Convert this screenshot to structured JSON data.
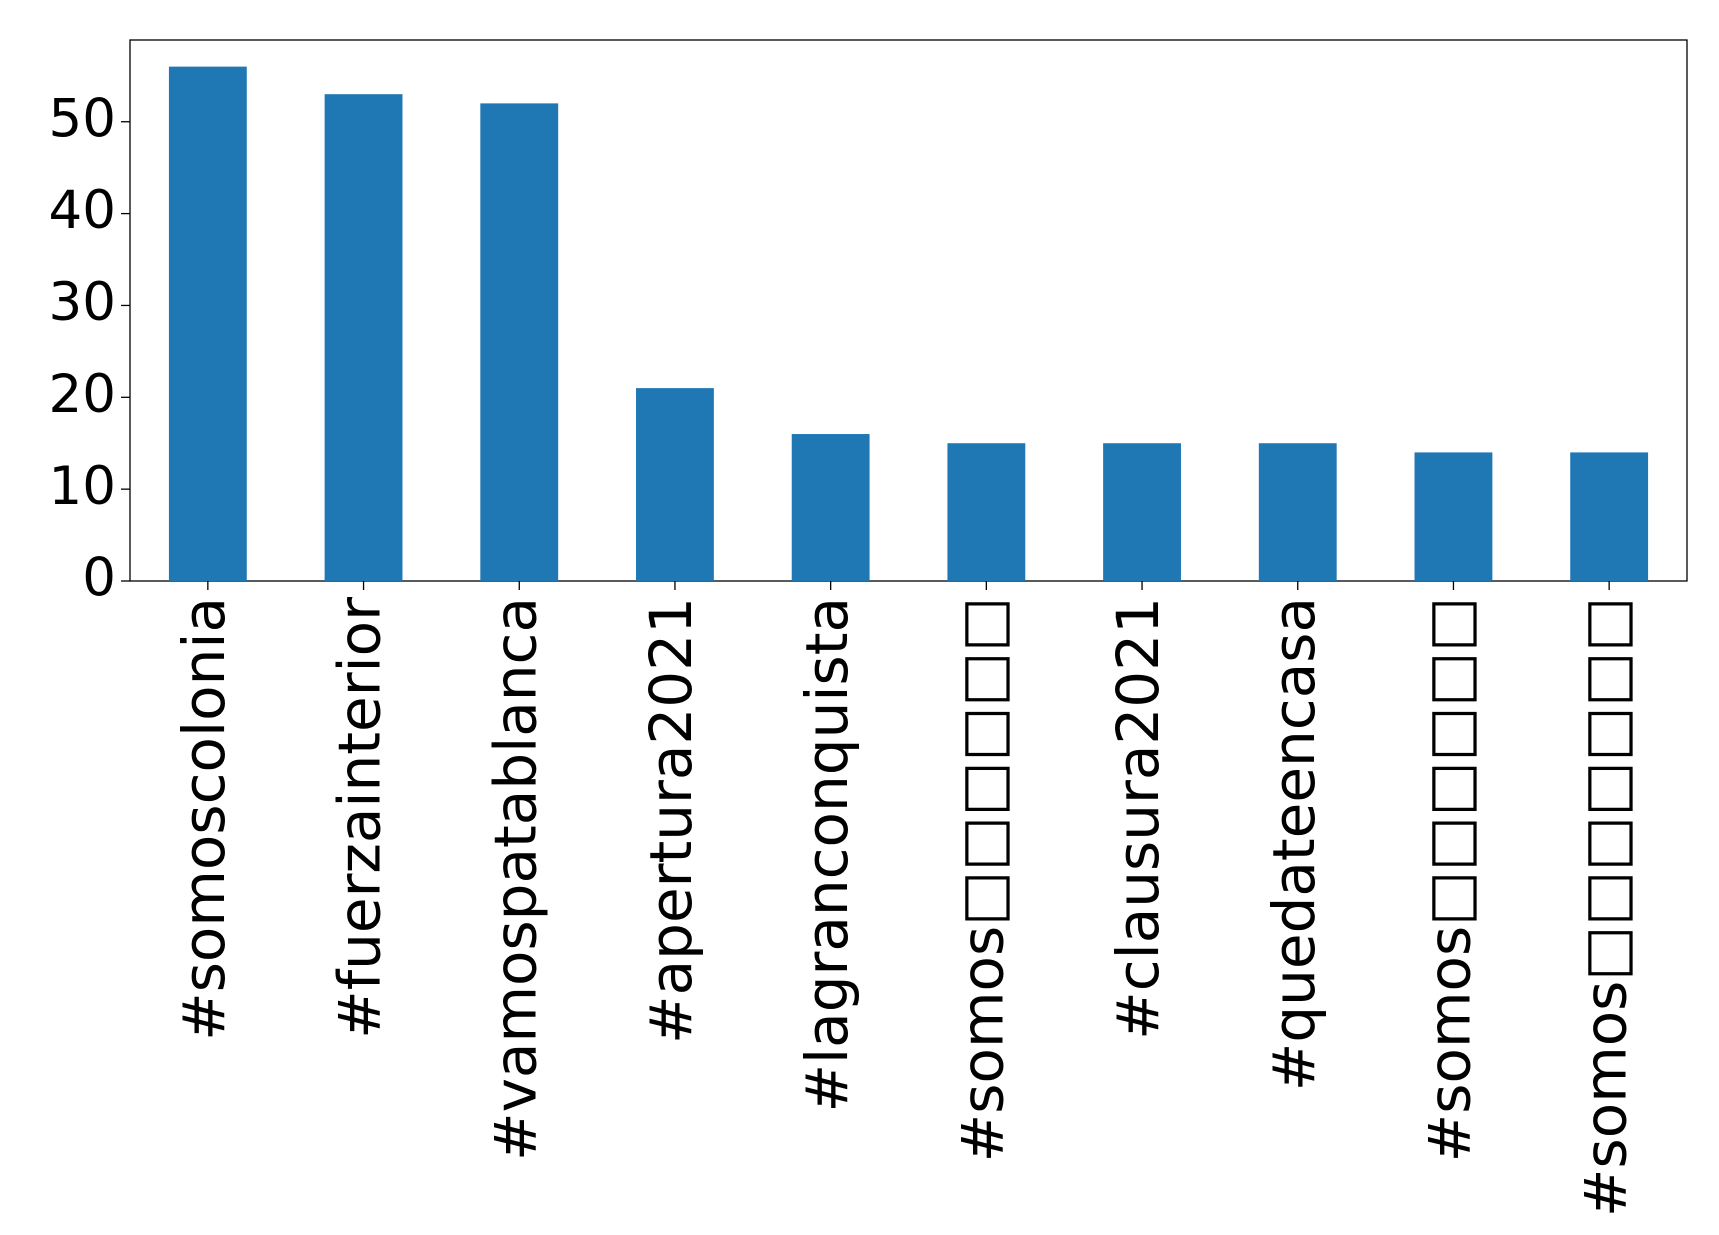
{
  "chart_data": {
    "type": "bar",
    "categories": [
      "#somoscolonia",
      "#fuerzainterior",
      "#vamospatablanca",
      "#apertura2021",
      "#lagranconquista",
      "#somos□□□□□□",
      "#clausura2021",
      "#quedateencasa",
      "#somos□□□□□□",
      "#somos□□□□□□□"
    ],
    "values": [
      56,
      53,
      52,
      21,
      16,
      15,
      15,
      15,
      14,
      14
    ],
    "color": "#1f77b4",
    "ylim": [
      0,
      58.9
    ],
    "yticks": [
      0,
      10,
      20,
      30,
      40,
      50
    ],
    "grid": false
  }
}
